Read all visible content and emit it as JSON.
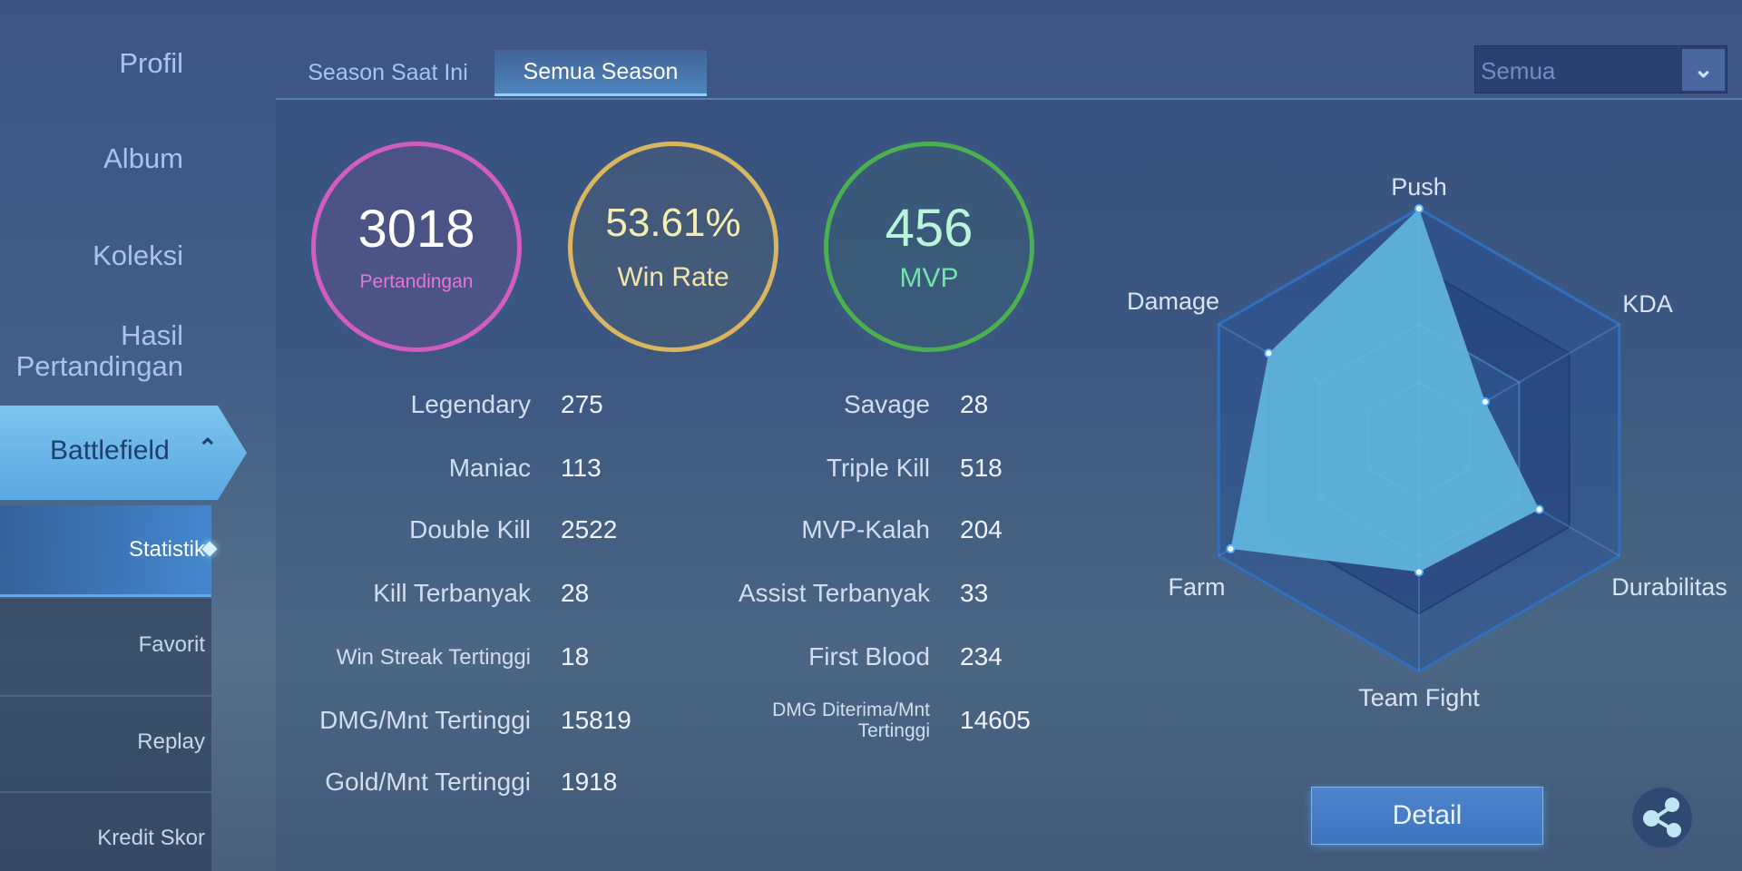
{
  "sidebar": {
    "items": [
      "Profil",
      "Album",
      "Koleksi",
      "Hasil Pertandingan",
      "Battlefield"
    ],
    "sub_items": [
      "Statistik",
      "Favorit",
      "Replay",
      "Kredit Skor"
    ]
  },
  "tabs": [
    "Season Saat Ini",
    "Semua Season"
  ],
  "filter": {
    "selected": "Semua"
  },
  "summary": {
    "matches": "3018",
    "matches_label": "Pertandingan",
    "winrate": "53.61%",
    "winrate_label": "Win Rate",
    "mvp": "456",
    "mvp_label": "MVP"
  },
  "stats_left": [
    [
      "Legendary",
      "275"
    ],
    [
      "Maniac",
      "113"
    ],
    [
      "Double Kill",
      "2522"
    ],
    [
      "Kill Terbanyak",
      "28"
    ],
    [
      "Win Streak Tertinggi",
      "18"
    ],
    [
      "DMG/Mnt Tertinggi",
      "15819"
    ],
    [
      "Gold/Mnt Tertinggi",
      "1918"
    ]
  ],
  "stats_right": [
    [
      "Savage",
      "28"
    ],
    [
      "Triple Kill",
      "518"
    ],
    [
      "MVP-Kalah",
      "204"
    ],
    [
      "Assist Terbanyak",
      "33"
    ],
    [
      "First Blood",
      "234"
    ],
    [
      "DMG Diterima/Mnt Tertinggi",
      "14605"
    ]
  ],
  "detail_label": "Detail",
  "colors": {
    "matches": "#d35cc0",
    "winrate": "#d8b660",
    "mvp": "#4caf50",
    "radar_fill": "#62b8e0"
  },
  "chart_data": {
    "type": "radar",
    "axes": [
      "Push",
      "KDA",
      "Durabilitas",
      "Team Fight",
      "Farm",
      "Damage"
    ],
    "values": [
      1.0,
      0.33,
      0.6,
      0.57,
      0.94,
      0.75
    ],
    "range": [
      0,
      1
    ]
  }
}
